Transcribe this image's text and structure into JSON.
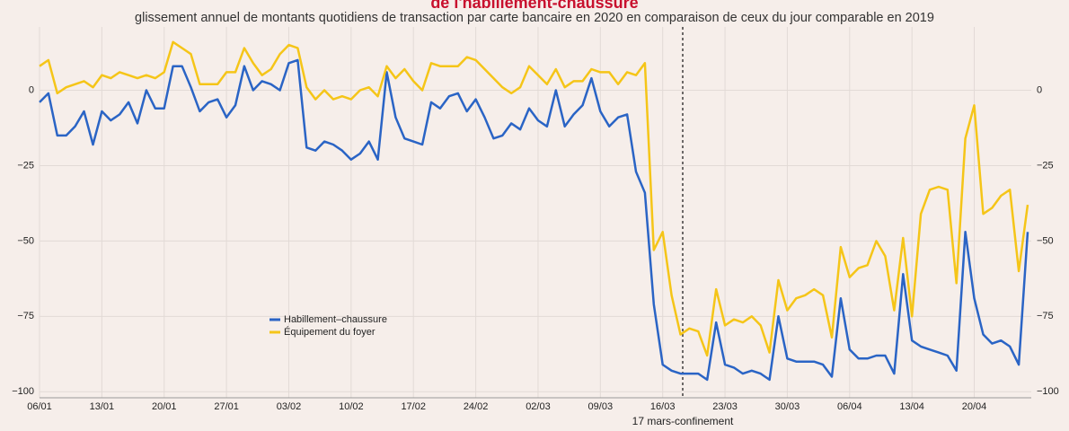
{
  "chart_data": {
    "type": "line",
    "title": "de l'habillement-chaussure",
    "subtitle": "glissement annuel de montants quotidiens de transaction par carte bancaire en 2020 en comparaison de ceux du jour comparable en 2019",
    "annotation": "17 mars-confinement",
    "categories": [
      "06/01",
      null,
      null,
      null,
      null,
      null,
      null,
      "13/01",
      null,
      null,
      null,
      null,
      null,
      null,
      "20/01",
      null,
      null,
      null,
      null,
      null,
      null,
      "27/01",
      null,
      null,
      null,
      null,
      null,
      null,
      "03/02",
      null,
      null,
      null,
      null,
      null,
      null,
      "10/02",
      null,
      null,
      null,
      null,
      null,
      null,
      "17/02",
      null,
      null,
      null,
      null,
      null,
      null,
      "24/02",
      null,
      null,
      null,
      null,
      null,
      null,
      "02/03",
      null,
      null,
      null,
      null,
      null,
      null,
      "09/03",
      null,
      null,
      null,
      null,
      null,
      null,
      "16/03",
      null,
      null,
      null,
      null,
      null,
      null,
      "23/03",
      null,
      null,
      null,
      null,
      null,
      null,
      "30/03",
      null,
      null,
      null,
      null,
      null,
      null,
      "06/04",
      null,
      null,
      null,
      null,
      null,
      null,
      "13/04",
      null,
      null,
      null,
      null,
      null,
      null,
      "20/04",
      null,
      null,
      null,
      null,
      null,
      null
    ],
    "series": [
      {
        "name": "Habillement–chaussure",
        "color": "#2a64c5",
        "values": [
          -4,
          -1,
          -15,
          -15,
          -12,
          -7,
          -18,
          -7,
          -10,
          -8,
          -4,
          -11,
          0,
          -6,
          -6,
          8,
          8,
          1,
          -7,
          -4,
          -3,
          -9,
          -5,
          8,
          0,
          3,
          2,
          0,
          9,
          10,
          -19,
          -20,
          -17,
          -18,
          -20,
          -23,
          -21,
          -17,
          -23,
          6,
          -9,
          -16,
          -17,
          -18,
          -4,
          -6,
          -2,
          -1,
          -7,
          -3,
          -9,
          -16,
          -15,
          -11,
          -13,
          -6,
          -10,
          -12,
          0,
          -12,
          -8,
          -5,
          4,
          -7,
          -12,
          -9,
          -8,
          -27,
          -34,
          -71,
          -91,
          -93,
          -94,
          -94,
          -94,
          -96,
          -77,
          -91,
          -92,
          -94,
          -93,
          -94,
          -96,
          -75,
          -89,
          -90,
          -90,
          -90,
          -91,
          -95,
          -69,
          -86,
          -89,
          -89,
          -88,
          -88,
          -94,
          -61,
          -83,
          -85,
          -86,
          -87,
          -88,
          -93,
          -47,
          -69,
          -81,
          -84,
          -83,
          -85,
          -91,
          -47
        ]
      },
      {
        "name": "Équipement du foyer",
        "color": "#f5c518",
        "values": [
          8,
          10,
          -1,
          1,
          2,
          3,
          1,
          5,
          4,
          6,
          5,
          4,
          5,
          4,
          6,
          16,
          14,
          12,
          2,
          2,
          2,
          6,
          6,
          14,
          9,
          5,
          7,
          12,
          15,
          14,
          1,
          -3,
          0,
          -3,
          -2,
          -3,
          0,
          1,
          -2,
          8,
          4,
          7,
          3,
          0,
          9,
          8,
          8,
          8,
          11,
          10,
          7,
          4,
          1,
          -1,
          1,
          8,
          5,
          2,
          7,
          1,
          3,
          3,
          7,
          6,
          6,
          2,
          6,
          5,
          9,
          -53,
          -47,
          -68,
          -81,
          -79,
          -80,
          -88,
          -66,
          -78,
          -76,
          -77,
          -75,
          -78,
          -87,
          -63,
          -73,
          -69,
          -68,
          -66,
          -68,
          -82,
          -52,
          -62,
          -59,
          -58,
          -50,
          -55,
          -73,
          -49,
          -75,
          -41,
          -33,
          -32,
          -33,
          -64,
          -16,
          -5,
          -41,
          -39,
          -35,
          -33,
          -60,
          -38
        ]
      }
    ],
    "ylim": [
      -102,
      21
    ],
    "yticks": [
      {
        "value": -100,
        "label": "−100"
      },
      {
        "value": -75,
        "label": "−75"
      },
      {
        "value": -50,
        "label": "−50"
      },
      {
        "value": -25,
        "label": "−25"
      },
      0
    ],
    "grid": true
  }
}
